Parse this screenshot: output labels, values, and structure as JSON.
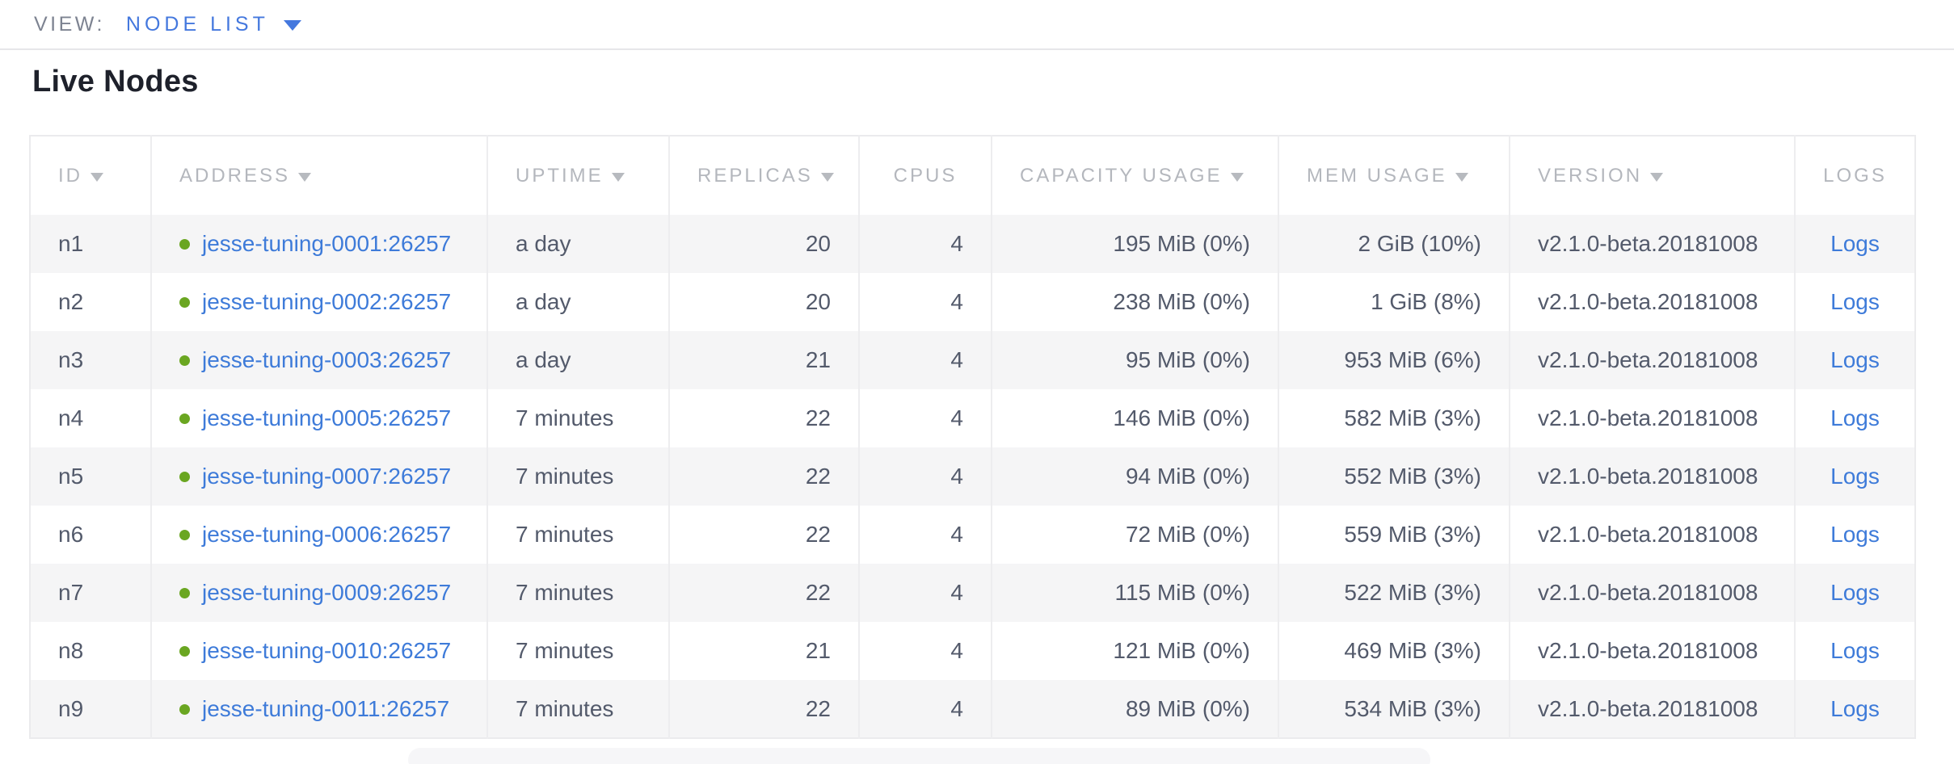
{
  "view_bar": {
    "label": "VIEW:",
    "selected_view": "NODE LIST"
  },
  "page": {
    "title": "Live Nodes"
  },
  "table": {
    "columns": [
      {
        "key": "id",
        "label": "ID",
        "sortable": true,
        "align": "left"
      },
      {
        "key": "address",
        "label": "ADDRESS",
        "sortable": true,
        "align": "left"
      },
      {
        "key": "uptime",
        "label": "UPTIME",
        "sortable": true,
        "align": "left"
      },
      {
        "key": "replicas",
        "label": "REPLICAS",
        "sortable": true,
        "align": "right"
      },
      {
        "key": "cpus",
        "label": "CPUS",
        "sortable": false,
        "align": "right"
      },
      {
        "key": "capacity",
        "label": "CAPACITY USAGE",
        "sortable": true,
        "align": "right"
      },
      {
        "key": "mem",
        "label": "MEM USAGE",
        "sortable": true,
        "align": "right"
      },
      {
        "key": "version",
        "label": "VERSION",
        "sortable": true,
        "align": "left"
      },
      {
        "key": "logs",
        "label": "LOGS",
        "sortable": false,
        "align": "center"
      }
    ],
    "rows": [
      {
        "id": "n1",
        "address": "jesse-tuning-0001:26257",
        "uptime": "a day",
        "replicas": "20",
        "cpus": "4",
        "capacity": "195 MiB (0%)",
        "mem": "2 GiB (10%)",
        "version": "v2.1.0-beta.20181008",
        "logs": "Logs"
      },
      {
        "id": "n2",
        "address": "jesse-tuning-0002:26257",
        "uptime": "a day",
        "replicas": "20",
        "cpus": "4",
        "capacity": "238 MiB (0%)",
        "mem": "1 GiB (8%)",
        "version": "v2.1.0-beta.20181008",
        "logs": "Logs"
      },
      {
        "id": "n3",
        "address": "jesse-tuning-0003:26257",
        "uptime": "a day",
        "replicas": "21",
        "cpus": "4",
        "capacity": "95 MiB (0%)",
        "mem": "953 MiB (6%)",
        "version": "v2.1.0-beta.20181008",
        "logs": "Logs"
      },
      {
        "id": "n4",
        "address": "jesse-tuning-0005:26257",
        "uptime": "7 minutes",
        "replicas": "22",
        "cpus": "4",
        "capacity": "146 MiB (0%)",
        "mem": "582 MiB (3%)",
        "version": "v2.1.0-beta.20181008",
        "logs": "Logs"
      },
      {
        "id": "n5",
        "address": "jesse-tuning-0007:26257",
        "uptime": "7 minutes",
        "replicas": "22",
        "cpus": "4",
        "capacity": "94 MiB (0%)",
        "mem": "552 MiB (3%)",
        "version": "v2.1.0-beta.20181008",
        "logs": "Logs"
      },
      {
        "id": "n6",
        "address": "jesse-tuning-0006:26257",
        "uptime": "7 minutes",
        "replicas": "22",
        "cpus": "4",
        "capacity": "72 MiB (0%)",
        "mem": "559 MiB (3%)",
        "version": "v2.1.0-beta.20181008",
        "logs": "Logs"
      },
      {
        "id": "n7",
        "address": "jesse-tuning-0009:26257",
        "uptime": "7 minutes",
        "replicas": "22",
        "cpus": "4",
        "capacity": "115 MiB (0%)",
        "mem": "522 MiB (3%)",
        "version": "v2.1.0-beta.20181008",
        "logs": "Logs"
      },
      {
        "id": "n8",
        "address": "jesse-tuning-0010:26257",
        "uptime": "7 minutes",
        "replicas": "21",
        "cpus": "4",
        "capacity": "121 MiB (0%)",
        "mem": "469 MiB (3%)",
        "version": "v2.1.0-beta.20181008",
        "logs": "Logs"
      },
      {
        "id": "n9",
        "address": "jesse-tuning-0011:26257",
        "uptime": "7 minutes",
        "replicas": "22",
        "cpus": "4",
        "capacity": "89 MiB (0%)",
        "mem": "534 MiB (3%)",
        "version": "v2.1.0-beta.20181008",
        "logs": "Logs"
      }
    ]
  },
  "colors": {
    "accent_blue": "#4478de",
    "link_blue": "#3e7bd9",
    "live_green": "#6aa621",
    "header_gray": "#b4b7bd",
    "cell_text": "#535a6b",
    "stripe": "#f5f5f6"
  }
}
